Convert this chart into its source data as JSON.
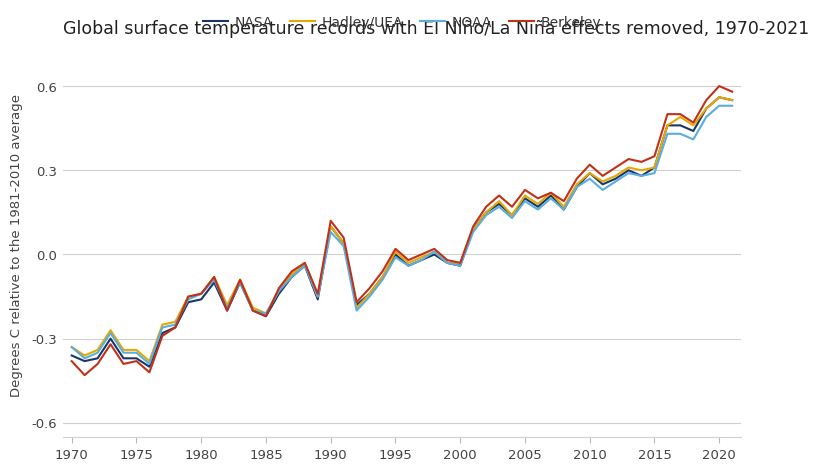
{
  "title": "Global surface temperature records with El Niño/La Niña effects removed, 1970-2021",
  "ylabel": "Degrees C relative to the 1981-2010 average",
  "years": [
    1970,
    1971,
    1972,
    1973,
    1974,
    1975,
    1976,
    1977,
    1978,
    1979,
    1980,
    1981,
    1982,
    1983,
    1984,
    1985,
    1986,
    1987,
    1988,
    1989,
    1990,
    1991,
    1992,
    1993,
    1994,
    1995,
    1996,
    1997,
    1998,
    1999,
    2000,
    2001,
    2002,
    2003,
    2004,
    2005,
    2006,
    2007,
    2008,
    2009,
    2010,
    2011,
    2012,
    2013,
    2014,
    2015,
    2016,
    2017,
    2018,
    2019,
    2020,
    2021
  ],
  "NASA": [
    -0.36,
    -0.38,
    -0.37,
    -0.3,
    -0.37,
    -0.37,
    -0.4,
    -0.28,
    -0.26,
    -0.17,
    -0.16,
    -0.1,
    -0.2,
    -0.1,
    -0.2,
    -0.22,
    -0.14,
    -0.08,
    -0.04,
    -0.16,
    0.1,
    0.04,
    -0.18,
    -0.14,
    -0.08,
    0.0,
    -0.04,
    -0.02,
    0.0,
    -0.03,
    -0.04,
    0.09,
    0.15,
    0.18,
    0.14,
    0.2,
    0.17,
    0.21,
    0.16,
    0.24,
    0.29,
    0.25,
    0.27,
    0.3,
    0.28,
    0.31,
    0.46,
    0.46,
    0.44,
    0.52,
    0.56,
    0.55
  ],
  "HadleyUEA": [
    -0.33,
    -0.36,
    -0.34,
    -0.27,
    -0.34,
    -0.34,
    -0.38,
    -0.25,
    -0.24,
    -0.15,
    -0.14,
    -0.08,
    -0.18,
    -0.09,
    -0.19,
    -0.21,
    -0.13,
    -0.07,
    -0.03,
    -0.15,
    0.1,
    0.04,
    -0.19,
    -0.14,
    -0.08,
    0.01,
    -0.03,
    -0.01,
    0.01,
    -0.03,
    -0.03,
    0.09,
    0.15,
    0.19,
    0.14,
    0.21,
    0.18,
    0.22,
    0.17,
    0.25,
    0.29,
    0.26,
    0.28,
    0.31,
    0.3,
    0.31,
    0.46,
    0.49,
    0.46,
    0.52,
    0.56,
    0.55
  ],
  "NOAA": [
    -0.33,
    -0.37,
    -0.35,
    -0.28,
    -0.35,
    -0.35,
    -0.39,
    -0.26,
    -0.25,
    -0.16,
    -0.14,
    -0.09,
    -0.19,
    -0.1,
    -0.2,
    -0.21,
    -0.13,
    -0.08,
    -0.04,
    -0.15,
    0.08,
    0.03,
    -0.2,
    -0.15,
    -0.09,
    -0.01,
    -0.04,
    -0.02,
    0.01,
    -0.03,
    -0.04,
    0.08,
    0.14,
    0.17,
    0.13,
    0.19,
    0.16,
    0.2,
    0.16,
    0.24,
    0.27,
    0.23,
    0.26,
    0.29,
    0.28,
    0.29,
    0.43,
    0.43,
    0.41,
    0.49,
    0.53,
    0.53
  ],
  "Berkeley": [
    -0.38,
    -0.43,
    -0.39,
    -0.32,
    -0.39,
    -0.38,
    -0.42,
    -0.29,
    -0.26,
    -0.15,
    -0.14,
    -0.08,
    -0.2,
    -0.09,
    -0.2,
    -0.22,
    -0.12,
    -0.06,
    -0.03,
    -0.14,
    0.12,
    0.06,
    -0.17,
    -0.12,
    -0.06,
    0.02,
    -0.02,
    0.0,
    0.02,
    -0.02,
    -0.03,
    0.1,
    0.17,
    0.21,
    0.17,
    0.23,
    0.2,
    0.22,
    0.19,
    0.27,
    0.32,
    0.28,
    0.31,
    0.34,
    0.33,
    0.35,
    0.5,
    0.5,
    0.47,
    0.55,
    0.6,
    0.58
  ],
  "colors": {
    "NASA": "#1a3668",
    "HadleyUEA": "#e8a800",
    "NOAA": "#5aade0",
    "Berkeley": "#c0311a"
  },
  "ylim": [
    -0.65,
    0.72
  ],
  "yticks": [
    -0.6,
    -0.3,
    0.0,
    0.3,
    0.6
  ],
  "xticks": [
    1970,
    1975,
    1980,
    1985,
    1990,
    1995,
    2000,
    2005,
    2010,
    2015,
    2020
  ],
  "grid_color": "#d0d0d0",
  "bg_color": "#ffffff",
  "linewidth": 1.5,
  "title_fontsize": 12.5,
  "label_fontsize": 9.5,
  "tick_fontsize": 9.5,
  "legend_fontsize": 10
}
